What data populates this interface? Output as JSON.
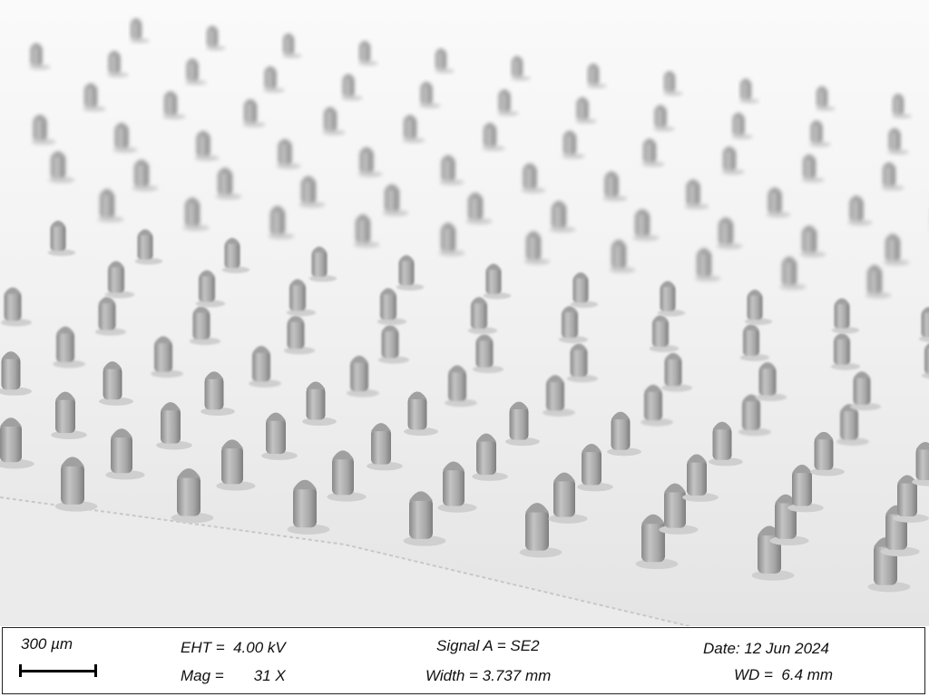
{
  "info_panel": {
    "scale_label": "300 µm",
    "eht": "EHT =  4.00 kV",
    "mag": "Mag =       31 X",
    "signal": "Signal A = SE2",
    "width": "Width = 3.737 mm",
    "date": "Date: 12 Jun 2024",
    "wd": "WD =  6.4 mm"
  },
  "colors": {
    "background": "#f2f2f2",
    "pillar": "#9a9a9a",
    "substrate": "#e6e6e6"
  }
}
